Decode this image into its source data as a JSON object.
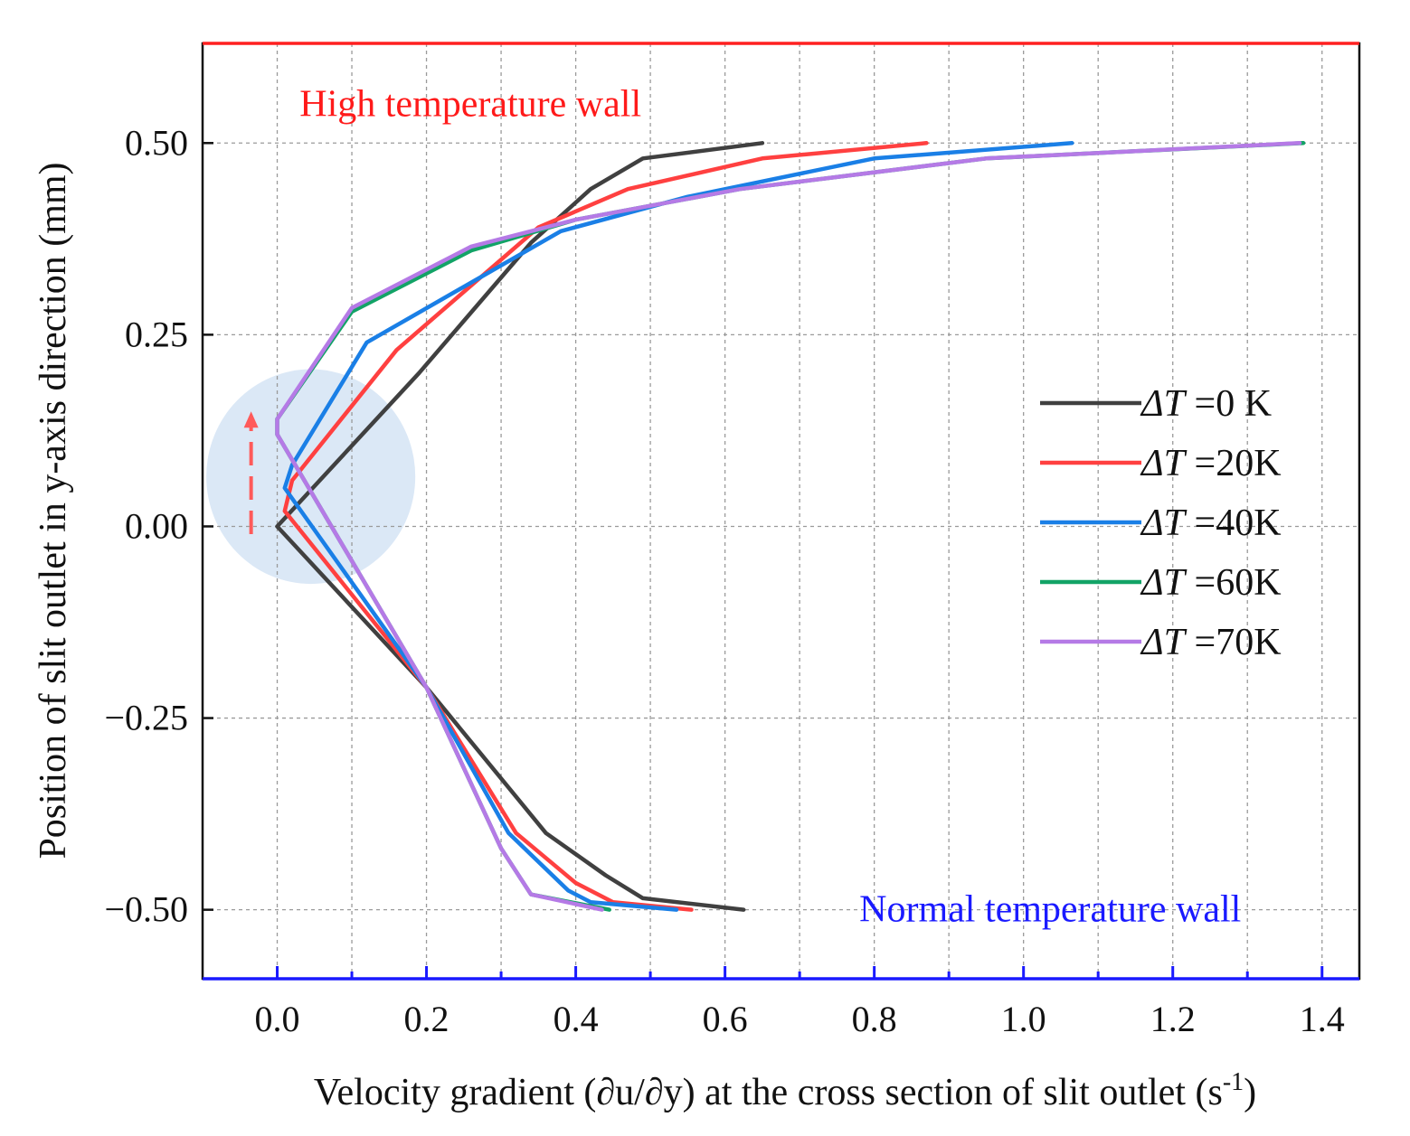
{
  "chart_data": {
    "type": "line",
    "title": "",
    "xlabel": "Velocity gradient (∂u/∂y) at the cross section of slit outlet (s",
    "xlabel_sup": "-1",
    "xlabel_end": ")",
    "ylabel": "Position of slit outlet in y-axis direction (mm)",
    "xlim": [
      -0.1,
      1.45
    ],
    "ylim": [
      -0.59,
      0.63
    ],
    "x_ticks": [
      0.0,
      0.2,
      0.4,
      0.6,
      0.8,
      1.0,
      1.2,
      1.4
    ],
    "x_tick_labels": [
      "0.0",
      "0.2",
      "0.4",
      "0.6",
      "0.8",
      "1.0",
      "1.2",
      "1.4"
    ],
    "y_ticks": [
      0.5,
      0.25,
      0.0,
      -0.25,
      -0.5
    ],
    "y_tick_labels": [
      "0.50",
      "0.25",
      "0.00",
      "−0.25",
      "−0.50"
    ],
    "grid": true,
    "legend_position": "right",
    "annotations": [
      {
        "text": "High temperature wall",
        "color": "#ff1a1a",
        "x": 0.03,
        "y": 0.535
      },
      {
        "text": "Normal temperature wall",
        "color": "#1a1aff",
        "x": 0.78,
        "y": -0.515
      }
    ],
    "walls": {
      "top_color": "#ff2020",
      "bottom_color": "#1a1aff"
    },
    "highlight": {
      "center_x": 0.045,
      "center_y": 0.065,
      "radius_x": 0.14,
      "radius_y": 0.14,
      "color": "#dbe8f6",
      "arrow_color": "#ff5a5a",
      "arrow_x": -0.035,
      "arrow_from_y": -0.01,
      "arrow_to_y": 0.15
    },
    "series": [
      {
        "name": "ΔT =0 K",
        "name_prefix": "ΔT",
        "name_suffix": " =0 K",
        "color": "#404040",
        "x": [
          0.625,
          0.49,
          0.44,
          0.36,
          0.2,
          0.0,
          0.19,
          0.34,
          0.42,
          0.49,
          0.65
        ],
        "y": [
          -0.5,
          -0.485,
          -0.455,
          -0.4,
          -0.21,
          0.0,
          0.2,
          0.37,
          0.44,
          0.48,
          0.5
        ]
      },
      {
        "name": "ΔT =20K",
        "name_prefix": "ΔT",
        "name_suffix": " =20K",
        "color": "#ff4040",
        "x": [
          0.555,
          0.45,
          0.4,
          0.32,
          0.2,
          0.01,
          0.02,
          0.16,
          0.35,
          0.47,
          0.65,
          0.87
        ],
        "y": [
          -0.5,
          -0.49,
          -0.465,
          -0.4,
          -0.21,
          0.02,
          0.06,
          0.23,
          0.39,
          0.44,
          0.48,
          0.5
        ]
      },
      {
        "name": "ΔT =40K",
        "name_prefix": "ΔT",
        "name_suffix": " =40K",
        "color": "#1a7fe6",
        "x": [
          0.535,
          0.42,
          0.39,
          0.31,
          0.2,
          0.01,
          0.02,
          0.12,
          0.38,
          0.55,
          0.8,
          1.065
        ],
        "y": [
          -0.5,
          -0.49,
          -0.475,
          -0.4,
          -0.21,
          0.05,
          0.08,
          0.24,
          0.385,
          0.43,
          0.48,
          0.5
        ]
      },
      {
        "name": "ΔT =60K",
        "name_prefix": "ΔT",
        "name_suffix": " =60K",
        "color": "#12a366",
        "x": [
          0.445,
          0.34,
          0.3,
          0.2,
          0.0,
          0.0,
          0.1,
          0.26,
          0.4,
          0.62,
          0.95,
          1.375
        ],
        "y": [
          -0.5,
          -0.48,
          -0.42,
          -0.21,
          0.12,
          0.14,
          0.28,
          0.36,
          0.4,
          0.44,
          0.48,
          0.5
        ]
      },
      {
        "name": "ΔT =70K",
        "name_prefix": "ΔT",
        "name_suffix": " =70K",
        "color": "#b57ae6",
        "x": [
          0.435,
          0.34,
          0.3,
          0.2,
          0.0,
          0.0,
          0.1,
          0.26,
          0.4,
          0.62,
          0.95,
          1.37
        ],
        "y": [
          -0.5,
          -0.48,
          -0.42,
          -0.21,
          0.12,
          0.14,
          0.285,
          0.365,
          0.4,
          0.44,
          0.48,
          0.5
        ]
      }
    ]
  }
}
